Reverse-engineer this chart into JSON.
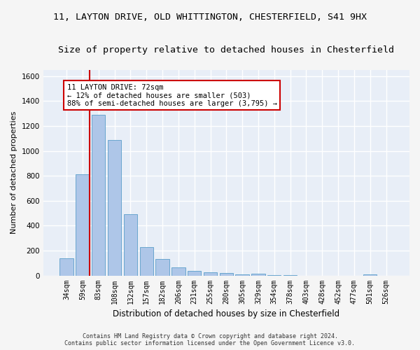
{
  "title_line1": "11, LAYTON DRIVE, OLD WHITTINGTON, CHESTERFIELD, S41 9HX",
  "title_line2": "Size of property relative to detached houses in Chesterfield",
  "xlabel": "Distribution of detached houses by size in Chesterfield",
  "ylabel": "Number of detached properties",
  "footer_line1": "Contains HM Land Registry data © Crown copyright and database right 2024.",
  "footer_line2": "Contains public sector information licensed under the Open Government Licence v3.0.",
  "bar_labels": [
    "34sqm",
    "59sqm",
    "83sqm",
    "108sqm",
    "132sqm",
    "157sqm",
    "182sqm",
    "206sqm",
    "231sqm",
    "255sqm",
    "280sqm",
    "305sqm",
    "329sqm",
    "354sqm",
    "378sqm",
    "403sqm",
    "428sqm",
    "452sqm",
    "477sqm",
    "501sqm",
    "526sqm"
  ],
  "bar_values": [
    140,
    815,
    1290,
    1090,
    490,
    230,
    130,
    65,
    38,
    25,
    20,
    10,
    12,
    5,
    2,
    0,
    0,
    0,
    0,
    10,
    0
  ],
  "bar_color": "#aec6e8",
  "bar_edge_color": "#5a9ec9",
  "marker_line_color": "#cc0000",
  "annotation_text": "11 LAYTON DRIVE: 72sqm\n← 12% of detached houses are smaller (503)\n88% of semi-detached houses are larger (3,795) →",
  "annotation_box_color": "#ffffff",
  "annotation_box_edge_color": "#cc0000",
  "ylim": [
    0,
    1650
  ],
  "yticks": [
    0,
    200,
    400,
    600,
    800,
    1000,
    1200,
    1400,
    1600
  ],
  "background_color": "#e8eef7",
  "grid_color": "#ffffff",
  "fig_facecolor": "#f5f5f5",
  "title_fontsize": 9.5,
  "subtitle_fontsize": 9.5,
  "ylabel_fontsize": 8,
  "xlabel_fontsize": 8.5,
  "tick_fontsize": 7,
  "footer_fontsize": 6,
  "annotation_fontsize": 7.5
}
